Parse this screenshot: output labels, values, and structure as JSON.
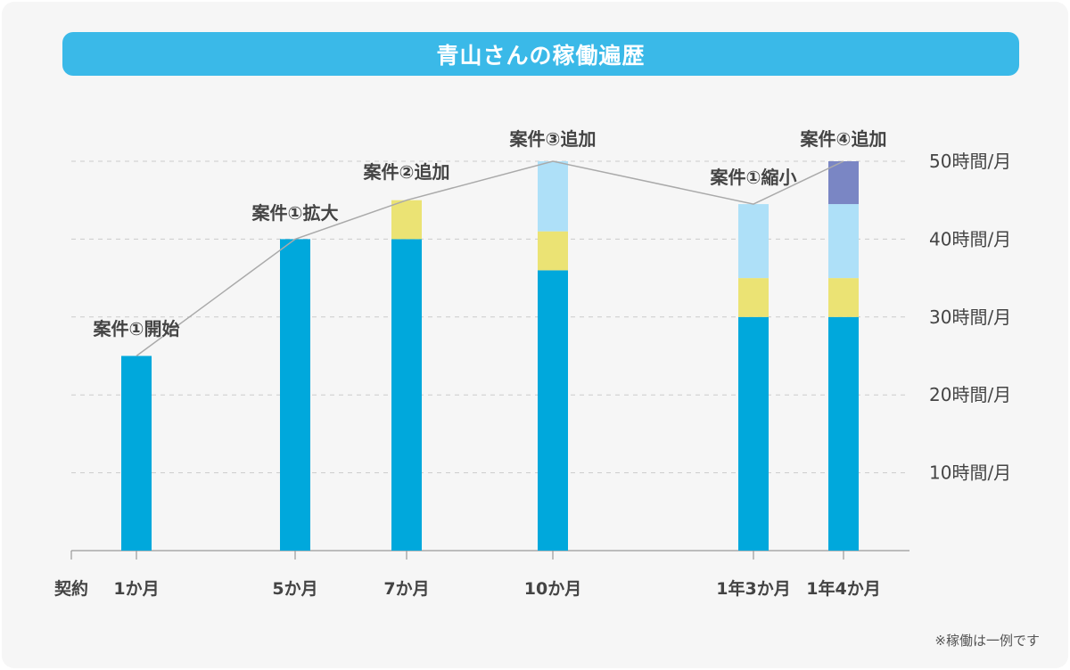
{
  "title": "青山さんの稼働遍歴",
  "note": "※稼働は一例です",
  "colors": {
    "title_bg": "#3ab9e8",
    "seg1": "#00a8dc",
    "seg2": "#ebe374",
    "seg3": "#aee0f8",
    "seg4": "#7a86c4",
    "line": "#aaaaaa",
    "grid": "#cccccc",
    "text": "#444444"
  },
  "chart_data": {
    "type": "bar",
    "stacked": true,
    "x_start_label": "契約",
    "categories": [
      "1か月",
      "5か月",
      "7か月",
      "10か月",
      "1年3か月",
      "1年4か月"
    ],
    "series": [
      {
        "values": [
          25,
          40,
          40,
          36,
          30,
          30
        ]
      },
      {
        "values": [
          0,
          0,
          5,
          5,
          5,
          5
        ]
      },
      {
        "values": [
          0,
          0,
          0,
          9,
          9.5,
          9.5
        ]
      },
      {
        "values": [
          0,
          0,
          0,
          0,
          0,
          5.5
        ]
      }
    ],
    "annotations": [
      "案件①開始",
      "案件①拡大",
      "案件②追加",
      "案件③追加",
      "案件①縮小",
      "案件④追加"
    ],
    "y_ticks": [
      {
        "value": 10,
        "label": "10時間/月"
      },
      {
        "value": 20,
        "label": "20時間/月"
      },
      {
        "value": 30,
        "label": "30時間/月"
      },
      {
        "value": 40,
        "label": "40時間/月"
      },
      {
        "value": 50,
        "label": "50時間/月"
      }
    ],
    "ylim": [
      0,
      50
    ],
    "grid": true,
    "trend_line": true
  }
}
